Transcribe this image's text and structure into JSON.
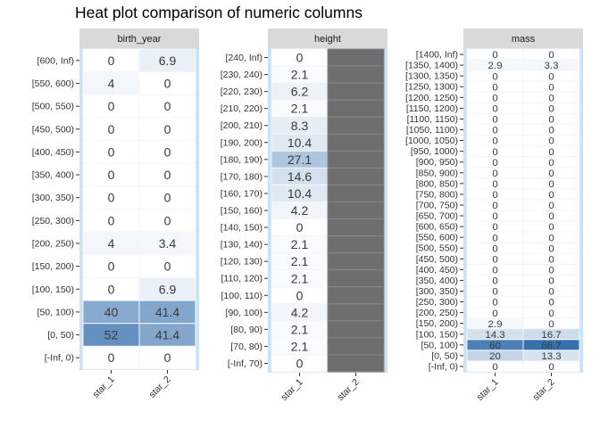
{
  "title": "Heat plot comparison of numeric columns",
  "chart_data": [
    {
      "type": "heatmap",
      "panel_label": "birth_year",
      "x": [
        "star_1",
        "star_2"
      ],
      "rows": [
        "[600, Inf)",
        "[550, 600)",
        "[500, 550)",
        "[450, 500)",
        "[400, 450)",
        "[350, 400)",
        "[300, 350)",
        "[250, 300)",
        "[200, 250)",
        "[150, 200)",
        "[100, 150)",
        "[50, 100)",
        "[0, 50)",
        "[-Inf, 0)"
      ],
      "values": [
        [
          "0",
          "6.9"
        ],
        [
          "4",
          "0"
        ],
        [
          "0",
          "0"
        ],
        [
          "0",
          "0"
        ],
        [
          "0",
          "0"
        ],
        [
          "0",
          "0"
        ],
        [
          "0",
          "0"
        ],
        [
          "0",
          "0"
        ],
        [
          "4",
          "3.4"
        ],
        [
          "0",
          "0"
        ],
        [
          "0",
          "6.9"
        ],
        [
          "40",
          "41.4"
        ],
        [
          "52",
          "41.4"
        ],
        [
          "0",
          "0"
        ]
      ]
    },
    {
      "type": "heatmap",
      "panel_label": "height",
      "x": [
        "star_1",
        "star_2"
      ],
      "rows": [
        "[240, Inf)",
        "[230, 240)",
        "[220, 230)",
        "[210, 220)",
        "[200, 210)",
        "[190, 200)",
        "[180, 190)",
        "[170, 180)",
        "[160, 170)",
        "[150, 160)",
        "[140, 150)",
        "[130, 140)",
        "[120, 130)",
        "[110, 120)",
        "[100, 110)",
        "[90, 100)",
        "[80, 90)",
        "[70, 80)",
        "[-Inf, 70)"
      ],
      "values": [
        [
          "0",
          null
        ],
        [
          "2.1",
          null
        ],
        [
          "6.2",
          null
        ],
        [
          "2.1",
          null
        ],
        [
          "8.3",
          null
        ],
        [
          "10.4",
          null
        ],
        [
          "27.1",
          null
        ],
        [
          "14.6",
          null
        ],
        [
          "10.4",
          null
        ],
        [
          "4.2",
          null
        ],
        [
          "0",
          null
        ],
        [
          "2.1",
          null
        ],
        [
          "2.1",
          null
        ],
        [
          "2.1",
          null
        ],
        [
          "0",
          null
        ],
        [
          "4.2",
          null
        ],
        [
          "2.1",
          null
        ],
        [
          "2.1",
          null
        ],
        [
          "0",
          null
        ]
      ],
      "missing_color": "#6e6e6e"
    },
    {
      "type": "heatmap",
      "panel_label": "mass",
      "x": [
        "star_1",
        "star_2"
      ],
      "rows": [
        "[1400, Inf)",
        "[1350, 1400)",
        "[1300, 1350)",
        "[1250, 1300)",
        "[1200, 1250)",
        "[1150, 1200)",
        "[1100, 1150)",
        "[1050, 1100)",
        "[1000, 1050)",
        "[950, 1000)",
        "[900, 950)",
        "[850, 900)",
        "[800, 850)",
        "[750, 800)",
        "[700, 750)",
        "[650, 700)",
        "[600, 650)",
        "[550, 600)",
        "[500, 550)",
        "[450, 500)",
        "[400, 450)",
        "[350, 400)",
        "[300, 350)",
        "[250, 300)",
        "[200, 250)",
        "[150, 200)",
        "[100, 150)",
        "[50, 100)",
        "[0, 50)",
        "[-Inf, 0)"
      ],
      "values": [
        [
          "0",
          "0"
        ],
        [
          "2.9",
          "3.3"
        ],
        [
          "0",
          "0"
        ],
        [
          "0",
          "0"
        ],
        [
          "0",
          "0"
        ],
        [
          "0",
          "0"
        ],
        [
          "0",
          "0"
        ],
        [
          "0",
          "0"
        ],
        [
          "0",
          "0"
        ],
        [
          "0",
          "0"
        ],
        [
          "0",
          "0"
        ],
        [
          "0",
          "0"
        ],
        [
          "0",
          "0"
        ],
        [
          "0",
          "0"
        ],
        [
          "0",
          "0"
        ],
        [
          "0",
          "0"
        ],
        [
          "0",
          "0"
        ],
        [
          "0",
          "0"
        ],
        [
          "0",
          "0"
        ],
        [
          "0",
          "0"
        ],
        [
          "0",
          "0"
        ],
        [
          "0",
          "0"
        ],
        [
          "0",
          "0"
        ],
        [
          "0",
          "0"
        ],
        [
          "0",
          "0"
        ],
        [
          "2.9",
          "0"
        ],
        [
          "14.3",
          "16.7"
        ],
        [
          "60",
          "66.7"
        ],
        [
          "20",
          "13.3"
        ],
        [
          "0",
          "0"
        ]
      ]
    }
  ],
  "colors": {
    "low": "#ffffff",
    "high": "#2d6aa9",
    "panel_border": "#c9e2f5",
    "strip_bg": "#d9d9d9"
  }
}
